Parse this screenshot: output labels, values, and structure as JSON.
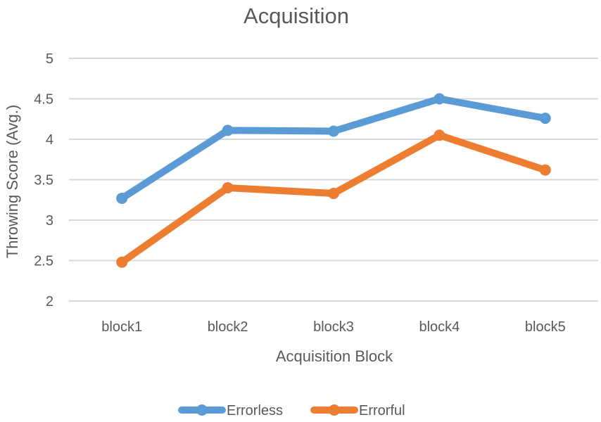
{
  "chart_data": {
    "type": "line",
    "title": "Acquisition",
    "xlabel": "Acquisition Block",
    "ylabel": "Throwing Score (Avg.)",
    "categories": [
      "block1",
      "block2",
      "block3",
      "block4",
      "block5"
    ],
    "ylim": [
      2,
      5
    ],
    "yticks": [
      "2",
      "2.5",
      "3",
      "3.5",
      "4",
      "4.5",
      "5"
    ],
    "grid": true,
    "legend_position": "bottom",
    "series": [
      {
        "name": "Errorless",
        "color": "#5b9bd5",
        "values": [
          3.27,
          4.11,
          4.1,
          4.5,
          4.26
        ]
      },
      {
        "name": "Errorful",
        "color": "#ed7d31",
        "values": [
          2.48,
          3.4,
          3.33,
          4.05,
          3.62
        ]
      }
    ]
  }
}
